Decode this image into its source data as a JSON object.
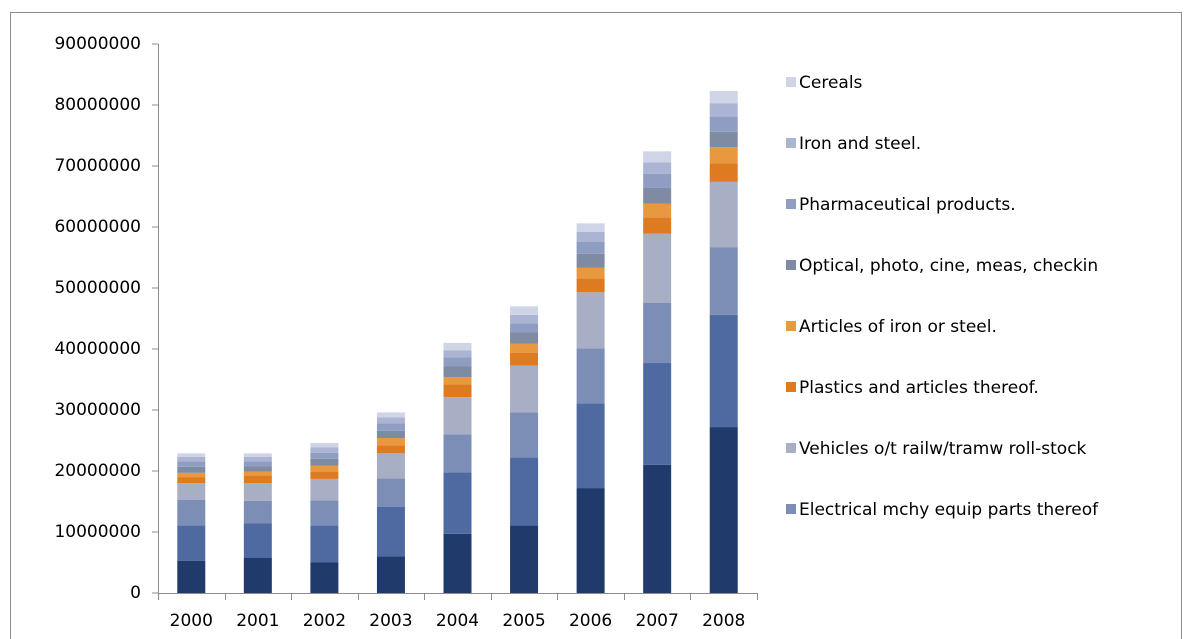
{
  "chart_data": {
    "type": "bar",
    "stacked": true,
    "categories": [
      "2000",
      "2001",
      "2002",
      "2003",
      "2004",
      "2005",
      "2006",
      "2007",
      "2008"
    ],
    "ylim": [
      0,
      90000000
    ],
    "yticks": [
      0,
      10000000,
      20000000,
      30000000,
      40000000,
      50000000,
      60000000,
      70000000,
      80000000,
      90000000
    ],
    "grid": false,
    "legend": "right",
    "series": [
      {
        "color": "#1f3a6b",
        "values": [
          5300000,
          5800000,
          5000000,
          6000000,
          9700000,
          11100000,
          17200000,
          21000000,
          27200000
        ]
      },
      {
        "color": "#4f6aa1",
        "values": [
          5800000,
          5600000,
          6100000,
          8100000,
          10100000,
          11100000,
          13900000,
          16700000,
          18400000
        ]
      },
      {
        "name": "Electrical mchy equip parts thereof",
        "color": "#7c8db6",
        "values": [
          4200000,
          3700000,
          4100000,
          4700000,
          6200000,
          7400000,
          9000000,
          9900000,
          11100000
        ]
      },
      {
        "name": "Vehicles o/t railw/tramw roll-stock",
        "color": "#a8aec4",
        "values": [
          2700000,
          2900000,
          3500000,
          4100000,
          6100000,
          7700000,
          9200000,
          11300000,
          10700000
        ]
      },
      {
        "name": "Plastics and articles thereof.",
        "color": "#de7b21",
        "values": [
          1000000,
          1300000,
          1200000,
          1300000,
          2100000,
          2100000,
          2300000,
          2700000,
          3000000
        ]
      },
      {
        "name": "Articles of iron or steel.",
        "color": "#e8983f",
        "values": [
          700000,
          600000,
          1000000,
          1200000,
          1200000,
          1500000,
          1700000,
          2200000,
          2700000
        ]
      },
      {
        "name": "Optical, photo, cine, meas, checkin",
        "color": "#7f8aa3",
        "values": [
          1000000,
          900000,
          1100000,
          1200000,
          1800000,
          1800000,
          2300000,
          2600000,
          2500000
        ]
      },
      {
        "name": "Pharmaceutical products.",
        "color": "#8f9dc3",
        "values": [
          900000,
          800000,
          1000000,
          1200000,
          1400000,
          1500000,
          2000000,
          2300000,
          2500000
        ]
      },
      {
        "name": "Iron and steel.",
        "color": "#abb4d2",
        "values": [
          700000,
          700000,
          900000,
          1000000,
          1200000,
          1400000,
          1600000,
          1900000,
          2200000
        ]
      },
      {
        "name": "Cereals",
        "color": "#cfd4e7",
        "values": [
          600000,
          600000,
          700000,
          800000,
          1200000,
          1400000,
          1400000,
          1800000,
          2000000
        ]
      }
    ]
  }
}
